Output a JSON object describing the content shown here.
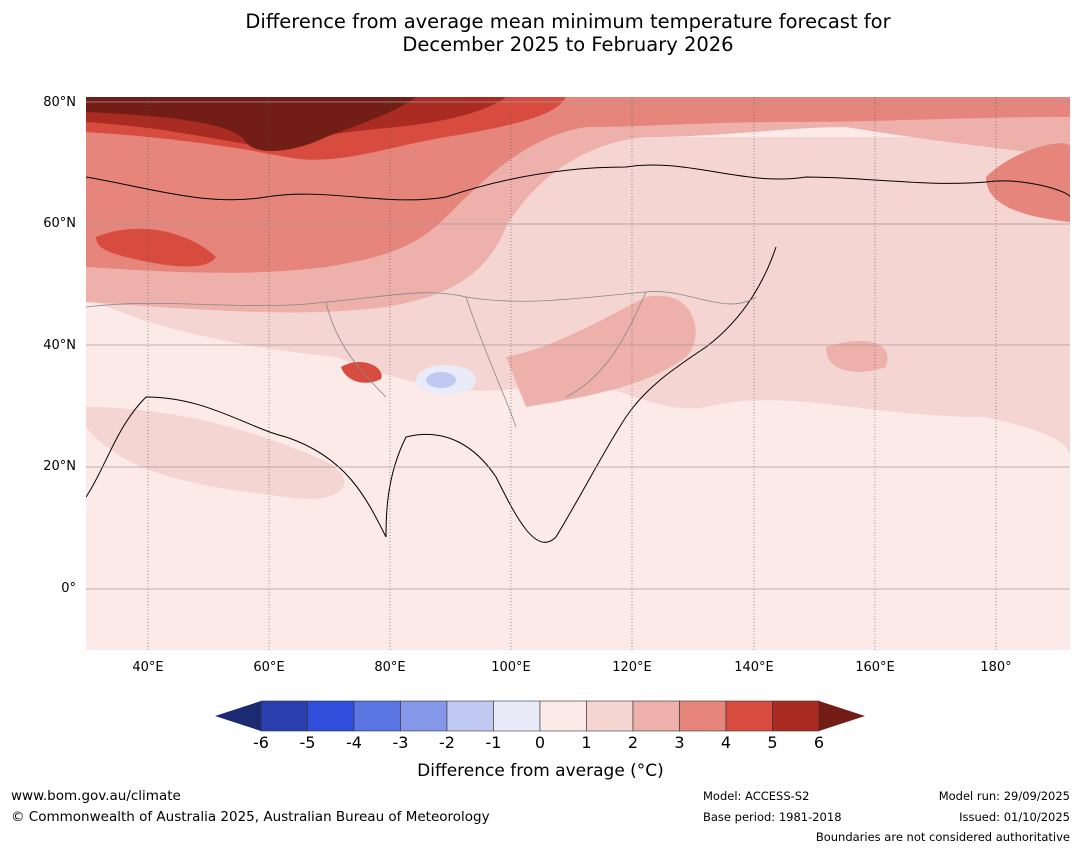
{
  "title": {
    "line1": "Difference from average mean minimum temperature forecast for",
    "line2": "December 2025 to February 2026"
  },
  "map": {
    "lat_ticks": [
      "80°N",
      "60°N",
      "40°N",
      "20°N",
      "0°"
    ],
    "lon_ticks": [
      "40°E",
      "60°E",
      "80°E",
      "100°E",
      "120°E",
      "140°E",
      "160°E",
      "180°"
    ]
  },
  "colorbar": {
    "label": "Difference from average (°C)",
    "ticks": [
      "-6",
      "-5",
      "-4",
      "-3",
      "-2",
      "-1",
      "0",
      "1",
      "2",
      "3",
      "4",
      "5",
      "6"
    ],
    "under_color": "#1b2a73",
    "over_color": "#731d17",
    "colors": [
      "#2a3fad",
      "#2f4fdc",
      "#5a74e2",
      "#8597e8",
      "#c1c9f2",
      "#e9ebf8",
      "#fbeae8",
      "#f5d5d2",
      "#edb0aa",
      "#e5857c",
      "#d84c40",
      "#a92b22"
    ]
  },
  "footer": {
    "url": "www.bom.gov.au/climate",
    "copyright": "© Commonwealth of Australia 2025, Australian Bureau of Meteorology",
    "model": "Model: ACCESS-S2",
    "base_period": "Base period: 1981-2018",
    "model_run": "Model run: 29/09/2025",
    "issued": "Issued: 01/10/2025",
    "disclaimer": "Boundaries are not considered authoritative"
  }
}
